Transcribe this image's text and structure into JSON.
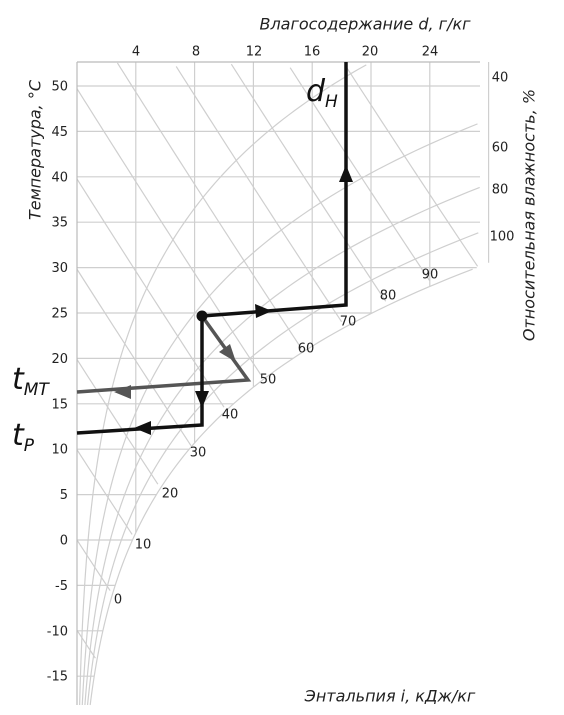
{
  "d_axis": {
    "label": "Влагосодержание d, г/кг",
    "ticks": [
      4,
      8,
      12,
      16,
      20,
      24
    ]
  },
  "t_axis": {
    "label": "Температура, °C",
    "ticks": [
      50,
      45,
      40,
      35,
      30,
      25,
      20,
      15,
      10,
      5,
      0,
      -5,
      -10,
      -15
    ]
  },
  "rh_axis": {
    "label": "Относительная влажность, %",
    "ticks": [
      40,
      60,
      80,
      100
    ]
  },
  "i_axis": {
    "label": "Энтальпия i, кДж/кг",
    "ticks": [
      90,
      80,
      70,
      60,
      50,
      40,
      30,
      20,
      10,
      0
    ]
  },
  "annotations": [
    {
      "main": "d",
      "sub": "H"
    },
    {
      "main": "t",
      "sub": "MT"
    },
    {
      "main": "t",
      "sub": "P"
    }
  ]
}
